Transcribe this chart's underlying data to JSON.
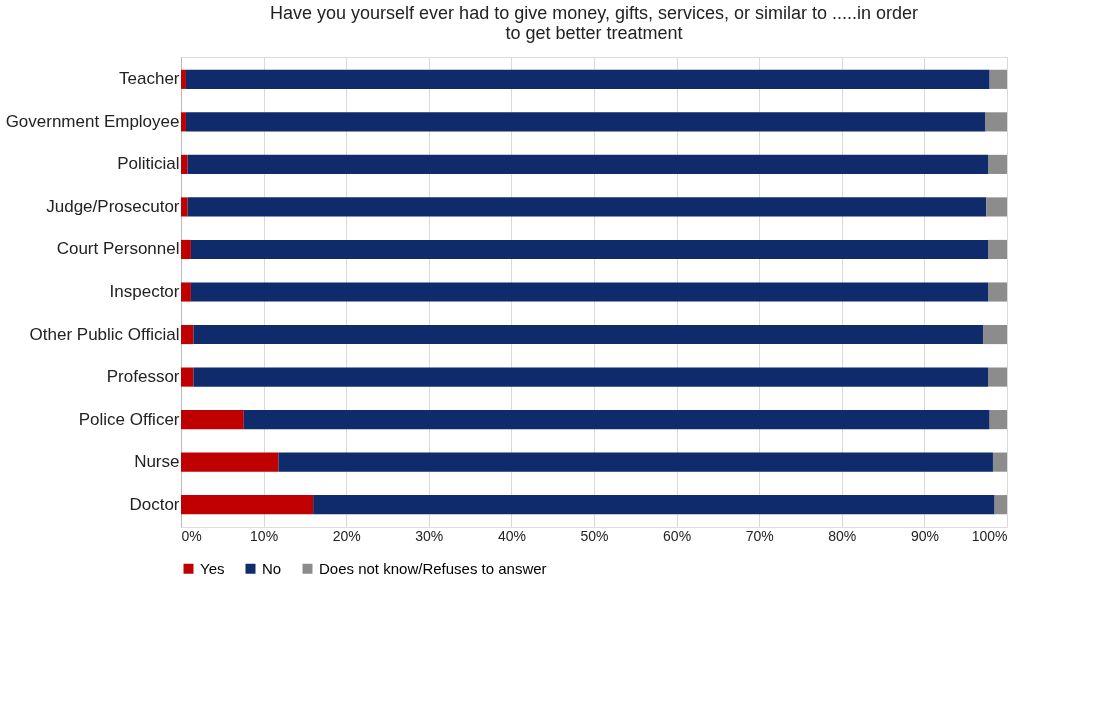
{
  "chart_data": {
    "type": "bar",
    "orientation": "horizontal",
    "stacked": true,
    "title": "Have you yourself ever had to give money, gifts, services, or similar to .....in order to get better treatment",
    "categories": [
      "Teacher",
      "Government Employee",
      "Politicial",
      "Judge/Prosecutor",
      "Court Personnel",
      "Inspector",
      "Other Public Official",
      "Professor",
      "Police Officer",
      "Nurse",
      "Doctor"
    ],
    "series": [
      {
        "name": "Yes",
        "color": "#c00000",
        "values": [
          0.6,
          0.6,
          0.8,
          0.8,
          1.2,
          1.2,
          1.5,
          1.5,
          7.6,
          11.8,
          16.0
        ]
      },
      {
        "name": "No",
        "color": "#0f2b6b",
        "values": [
          97.3,
          96.8,
          96.9,
          96.7,
          96.5,
          96.5,
          95.6,
          96.2,
          90.3,
          86.5,
          82.5
        ]
      },
      {
        "name": "Does not know/Refuses to answer",
        "color": "#8c8c8c",
        "values": [
          2.1,
          2.6,
          2.3,
          2.5,
          2.3,
          2.3,
          2.9,
          2.3,
          2.1,
          1.7,
          1.5
        ]
      }
    ],
    "xlim": [
      0,
      100
    ],
    "xticks": [
      {
        "value": 0,
        "label": "0%"
      },
      {
        "value": 10,
        "label": "10%"
      },
      {
        "value": 20,
        "label": "20%"
      },
      {
        "value": 30,
        "label": "30%"
      },
      {
        "value": 40,
        "label": "40%"
      },
      {
        "value": 50,
        "label": "50%"
      },
      {
        "value": 60,
        "label": "60%"
      },
      {
        "value": 70,
        "label": "70%"
      },
      {
        "value": 80,
        "label": "80%"
      },
      {
        "value": 90,
        "label": "90%"
      },
      {
        "value": 100,
        "label": "100%"
      }
    ],
    "grid": "x",
    "legend": "bottom"
  }
}
